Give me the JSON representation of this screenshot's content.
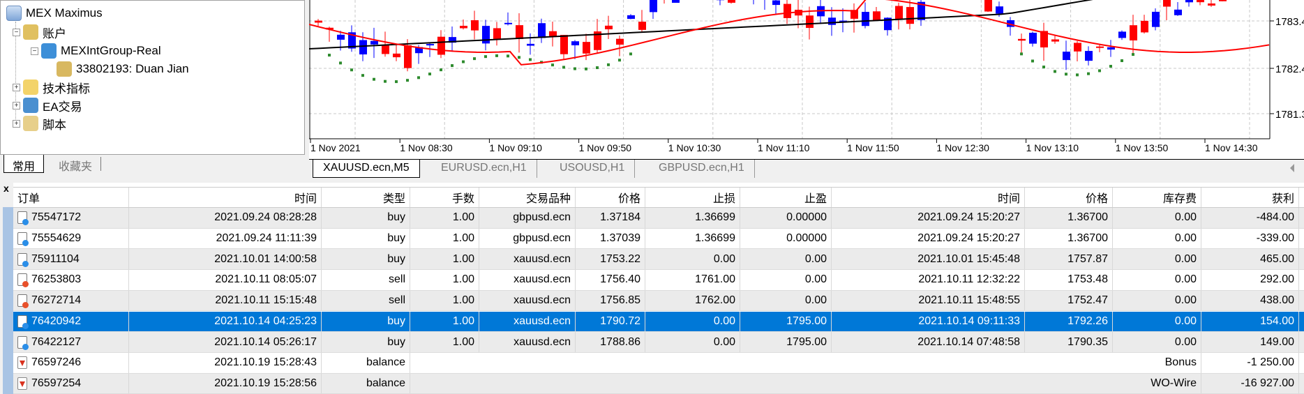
{
  "navigator": {
    "root": "MEX Maximus",
    "items": [
      {
        "label": "账户",
        "icon": "accounts-icon",
        "expanded": true
      },
      {
        "label": "MEXIntGroup-Real",
        "icon": "server-icon",
        "expanded": true
      },
      {
        "label": "33802193: Duan Jian",
        "icon": "user-icon"
      },
      {
        "label": "技术指标",
        "icon": "indicator-icon",
        "expanded": false
      },
      {
        "label": "EA交易",
        "icon": "expert-advisor-icon",
        "expanded": false
      },
      {
        "label": "脚本",
        "icon": "script-icon",
        "expanded": false
      }
    ],
    "tabs": [
      "常用",
      "收藏夹"
    ]
  },
  "chart": {
    "price_labels": [
      "1783.4",
      "1782.4",
      "1781.3"
    ],
    "time_labels": [
      "1 Nov 2021",
      "1 Nov 08:30",
      "1 Nov 09:10",
      "1 Nov 09:50",
      "1 Nov 10:30",
      "1 Nov 11:10",
      "1 Nov 11:50",
      "1 Nov 12:30",
      "1 Nov 13:10",
      "1 Nov 13:50",
      "1 Nov 14:30"
    ],
    "colors": {
      "bull": "#0000ff",
      "bear": "#ff0000",
      "ma_slow": "#000000",
      "ma_fast": "#ff0000",
      "sar": "#2e8b2e"
    },
    "tabs": [
      "XAUUSD.ecn,M5",
      "EURUSD.ecn,H1",
      "USOUSD,H1",
      "GBPUSD.ecn,H1"
    ],
    "active_tab": 0
  },
  "terminal": {
    "close": "x",
    "columns": [
      "订单",
      "时间",
      "类型",
      "手数",
      "交易品种",
      "价格",
      "止损",
      "止盈",
      "时间",
      "价格",
      "库存费",
      "获利"
    ],
    "selected_row": 5,
    "rows": [
      {
        "icon": "buy",
        "cells": [
          "75547172",
          "2021.09.24 08:28:28",
          "buy",
          "1.00",
          "gbpusd.ecn",
          "1.37184",
          "1.36699",
          "0.00000",
          "2021.09.24 15:20:27",
          "1.36700",
          "0.00",
          "-484.00"
        ]
      },
      {
        "icon": "buy",
        "cells": [
          "75554629",
          "2021.09.24 11:11:39",
          "buy",
          "1.00",
          "gbpusd.ecn",
          "1.37039",
          "1.36699",
          "0.00000",
          "2021.09.24 15:20:27",
          "1.36700",
          "0.00",
          "-339.00"
        ]
      },
      {
        "icon": "buy",
        "cells": [
          "75911104",
          "2021.10.01 14:00:58",
          "buy",
          "1.00",
          "xauusd.ecn",
          "1753.22",
          "0.00",
          "0.00",
          "2021.10.01 15:45:48",
          "1757.87",
          "0.00",
          "465.00"
        ]
      },
      {
        "icon": "sell",
        "cells": [
          "76253803",
          "2021.10.11 08:05:07",
          "sell",
          "1.00",
          "xauusd.ecn",
          "1756.40",
          "1761.00",
          "0.00",
          "2021.10.11 12:32:22",
          "1753.48",
          "0.00",
          "292.00"
        ]
      },
      {
        "icon": "sell",
        "cells": [
          "76272714",
          "2021.10.11 15:15:48",
          "sell",
          "1.00",
          "xauusd.ecn",
          "1756.85",
          "1762.00",
          "0.00",
          "2021.10.11 15:48:55",
          "1752.47",
          "0.00",
          "438.00"
        ]
      },
      {
        "icon": "buy",
        "cells": [
          "76420942",
          "2021.10.14 04:25:23",
          "buy",
          "1.00",
          "xauusd.ecn",
          "1790.72",
          "0.00",
          "1795.00",
          "2021.10.14 09:11:33",
          "1792.26",
          "0.00",
          "154.00"
        ]
      },
      {
        "icon": "buy",
        "cells": [
          "76422127",
          "2021.10.14 05:26:17",
          "buy",
          "1.00",
          "xauusd.ecn",
          "1788.86",
          "0.00",
          "1795.00",
          "2021.10.14 07:48:58",
          "1790.35",
          "0.00",
          "149.00"
        ]
      },
      {
        "icon": "balance",
        "cells": [
          "76597246",
          "2021.10.19 15:28:43",
          "balance"
        ],
        "comment": "Bonus",
        "profit": "-1 250.00"
      },
      {
        "icon": "balance",
        "cells": [
          "76597254",
          "2021.10.19 15:28:56",
          "balance"
        ],
        "comment": "WO-Wire",
        "profit": "-16 927.00"
      }
    ]
  }
}
